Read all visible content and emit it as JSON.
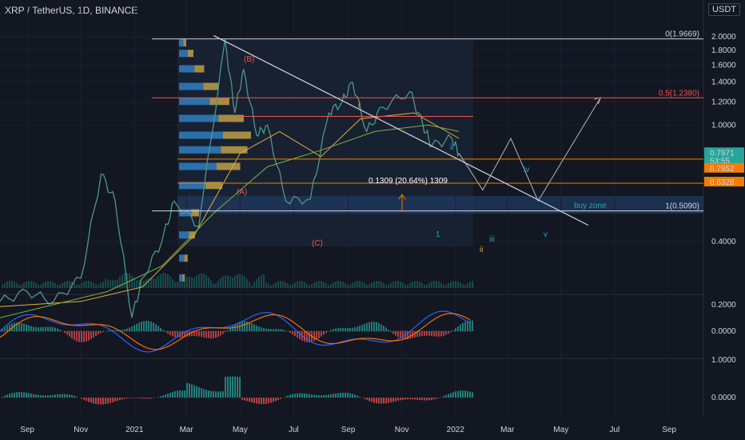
{
  "header": {
    "symbol": "XRP / TetherUS, 1D, BINANCE"
  },
  "currency_label": "USDT",
  "chart_data": {
    "type": "line",
    "title": "XRP / TetherUS, 1D, BINANCE",
    "price_axis": {
      "ticks": [
        "2.0000",
        "1.8000",
        "1.6000",
        "1.4000",
        "1.2000",
        "1.0000",
        "0.4000",
        "0.2000"
      ],
      "scale": "log",
      "range": [
        0.17,
        2.3
      ]
    },
    "macd_axis": {
      "ticks": [
        "0.2000",
        "0.0000"
      ]
    },
    "third_axis": {
      "ticks": [
        "1.0000",
        "0.0000"
      ]
    },
    "x_ticks": [
      "Sep",
      "Nov",
      "2021",
      "Mar",
      "May",
      "Jul",
      "Sep",
      "Nov",
      "2022",
      "Mar",
      "May",
      "Jul",
      "Sep"
    ],
    "price_labels": [
      {
        "text": "0.7971",
        "sub": "53:55",
        "color": "#26a69a"
      },
      {
        "text": "0.7652",
        "color": "#f57c00"
      },
      {
        "text": "0.6328",
        "color": "#f57c00"
      }
    ],
    "fib_levels": [
      {
        "label": "0(1.9669)",
        "value": 1.9669
      },
      {
        "label": "0.5(1.2380)",
        "value": 1.238
      },
      {
        "label": "1(0.5090)",
        "value": 0.509
      }
    ],
    "annotations": {
      "wave_B": "(B)",
      "wave_A": "(A)",
      "wave_C": "(C)",
      "wave_i": "i",
      "wave_ii": "ii",
      "wave_ii_b": "ii",
      "wave_iii": "iii",
      "wave_iv": "iv",
      "wave_v": "v",
      "wave_1": "1",
      "buy_zone": "buy zone",
      "measure": "0.1309 (20.64%) 1309"
    },
    "price_series": [
      [
        "2020-08-01",
        0.25
      ],
      [
        "2020-09-01",
        0.27
      ],
      [
        "2020-10-01",
        0.25
      ],
      [
        "2020-11-01",
        0.3
      ],
      [
        "2020-11-24",
        0.68
      ],
      [
        "2020-12-10",
        0.55
      ],
      [
        "2020-12-29",
        0.22
      ],
      [
        "2021-01-10",
        0.3
      ],
      [
        "2021-02-01",
        0.4
      ],
      [
        "2021-02-15",
        0.55
      ],
      [
        "2021-03-15",
        0.45
      ],
      [
        "2021-04-14",
        1.96
      ],
      [
        "2021-04-25",
        1.1
      ],
      [
        "2021-05-05",
        1.55
      ],
      [
        "2021-05-20",
        0.92
      ],
      [
        "2021-06-01",
        1.0
      ],
      [
        "2021-06-22",
        0.55
      ],
      [
        "2021-07-20",
        0.56
      ],
      [
        "2021-08-10",
        1.1
      ],
      [
        "2021-08-25",
        1.2
      ],
      [
        "2021-09-06",
        1.4
      ],
      [
        "2021-09-22",
        0.95
      ],
      [
        "2021-10-10",
        1.15
      ],
      [
        "2021-11-10",
        1.3
      ],
      [
        "2021-11-25",
        1.0
      ],
      [
        "2021-12-05",
        0.85
      ],
      [
        "2021-12-28",
        0.9
      ],
      [
        "2022-01-05",
        0.8
      ]
    ],
    "projection": [
      [
        "2022-01-05",
        0.8
      ],
      [
        "2022-02-01",
        0.6
      ],
      [
        "2022-03-05",
        0.9
      ],
      [
        "2022-04-05",
        0.55
      ],
      [
        "2022-06-15",
        1.24
      ]
    ]
  }
}
